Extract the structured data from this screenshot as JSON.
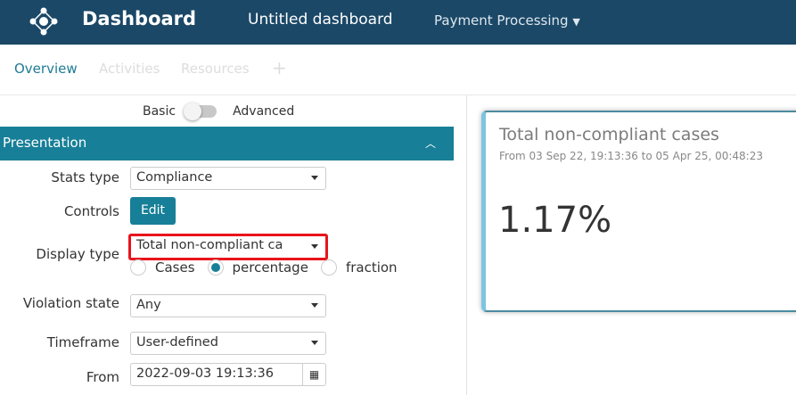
{
  "header": {
    "brand": "Dashboard",
    "title": "Untitled dashboard",
    "process": "Payment Processing"
  },
  "tabs": [
    {
      "label": "Overview",
      "active": true
    },
    {
      "label": "Activities"
    },
    {
      "label": "Resources"
    },
    {
      "label": "+"
    }
  ],
  "mode": {
    "basic": "Basic",
    "advanced": "Advanced"
  },
  "section": {
    "title": "Presentation"
  },
  "form": {
    "stats_type": {
      "label": "Stats type",
      "value": "Compliance"
    },
    "controls": {
      "label": "Controls",
      "button": "Edit"
    },
    "display_type": {
      "label": "Display type",
      "value": "Total non-compliant ca",
      "options": [
        "Cases",
        "percentage",
        "fraction"
      ],
      "selected": "percentage"
    },
    "violation_state": {
      "label": "Violation state",
      "value": "Any"
    },
    "timeframe": {
      "label": "Timeframe",
      "value": "User-defined"
    },
    "from": {
      "label": "From",
      "value": "2022-09-03 19:13:36"
    }
  },
  "card": {
    "title": "Total non-compliant cases",
    "subtitle": "From 03 Sep 22, 19:13:36 to 05 Apr 25, 00:48:23",
    "value": "1.17%"
  },
  "colors": {
    "header": "#1b4867",
    "accent": "#177f97",
    "highlight": "#e8141c"
  }
}
